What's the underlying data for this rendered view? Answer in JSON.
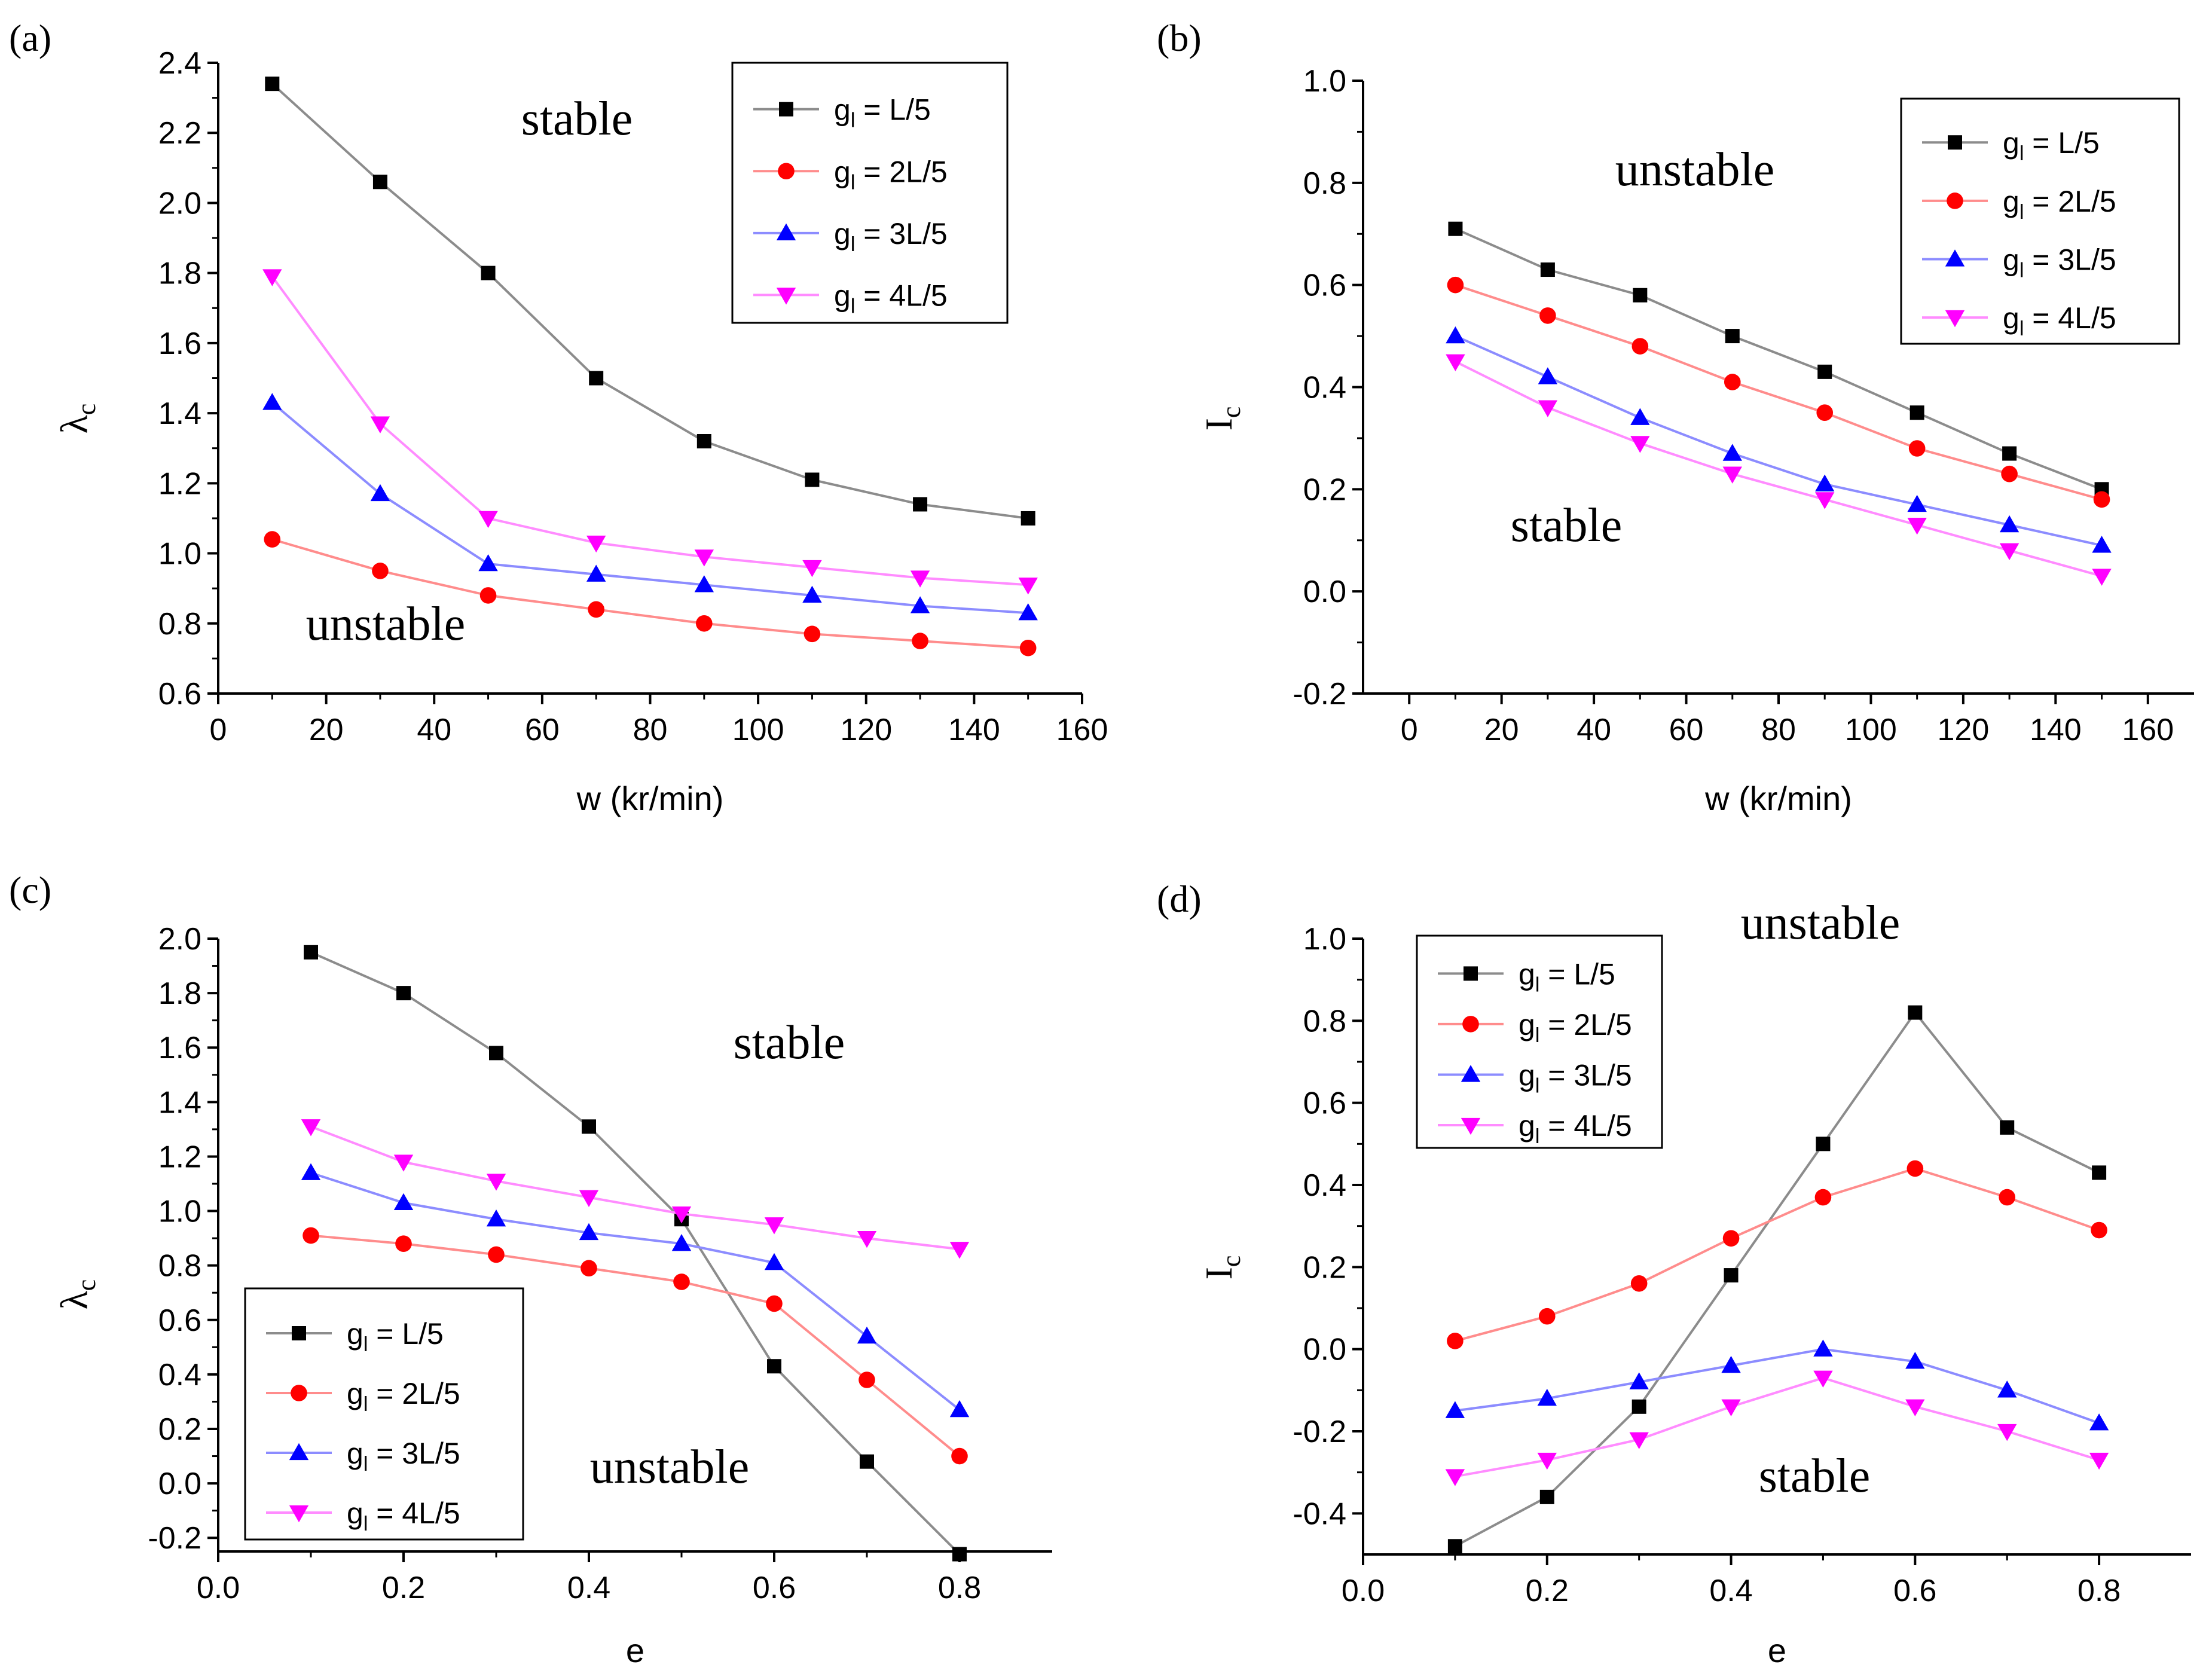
{
  "chart_data": [
    {
      "panel_label": "(a)",
      "type": "line",
      "xlabel": "w (kr/min)",
      "ylabel_main": "λ",
      "ylabel_sub": "c",
      "xlim": [
        0,
        160
      ],
      "ylim": [
        0.6,
        2.4
      ],
      "xticks": [
        0,
        20,
        40,
        60,
        80,
        100,
        120,
        140,
        160
      ],
      "yticks": [
        0.6,
        0.8,
        1.0,
        1.2,
        1.4,
        1.6,
        1.8,
        2.0,
        2.2,
        2.4
      ],
      "x": [
        10,
        30,
        50,
        70,
        90,
        110,
        130,
        150
      ],
      "series": [
        {
          "name": "gl = L/5",
          "label_main": "g",
          "label_sub": "l",
          "label_rest": " = L/5",
          "color": "#000000",
          "line_color": "#8c8c8c",
          "marker": "square",
          "values": [
            2.34,
            2.06,
            1.8,
            1.5,
            1.32,
            1.21,
            1.14,
            1.1
          ]
        },
        {
          "name": "gl = 2L/5",
          "label_main": "g",
          "label_sub": "l",
          "label_rest": " = 2L/5",
          "color": "#ff0000",
          "line_color": "#ff8c8c",
          "marker": "circle",
          "values": [
            1.04,
            0.95,
            0.88,
            0.84,
            0.8,
            0.77,
            0.75,
            0.73
          ]
        },
        {
          "name": "gl = 3L/5",
          "label_main": "g",
          "label_sub": "l",
          "label_rest": " = 3L/5",
          "color": "#0000ff",
          "line_color": "#8c8cff",
          "marker": "triangle-up",
          "values": [
            1.43,
            1.17,
            0.97,
            0.94,
            0.91,
            0.88,
            0.85,
            0.83
          ]
        },
        {
          "name": "gl = 4L/5",
          "label_main": "g",
          "label_sub": "l",
          "label_rest": " = 4L/5",
          "color": "#ff00ff",
          "line_color": "#ff8cff",
          "marker": "triangle-down",
          "values": [
            1.79,
            1.37,
            1.1,
            1.03,
            0.99,
            0.96,
            0.93,
            0.91
          ]
        }
      ],
      "annotations": [
        "stable",
        "unstable"
      ],
      "legend_position": "top-right"
    },
    {
      "panel_label": "(b)",
      "type": "line",
      "xlabel": "w (kr/min)",
      "ylabel_main": "I",
      "ylabel_sub": "c",
      "xlim": [
        -10,
        170
      ],
      "ylim": [
        -0.2,
        1.0
      ],
      "xticks": [
        0,
        20,
        40,
        60,
        80,
        100,
        120,
        140,
        160
      ],
      "yticks": [
        -0.2,
        0.0,
        0.2,
        0.4,
        0.6,
        0.8,
        1.0
      ],
      "x": [
        10,
        30,
        50,
        70,
        90,
        110,
        130,
        150
      ],
      "series": [
        {
          "name": "gl = L/5",
          "label_main": "g",
          "label_sub": "l",
          "label_rest": " = L/5",
          "color": "#000000",
          "line_color": "#8c8c8c",
          "marker": "square",
          "values": [
            0.71,
            0.63,
            0.58,
            0.5,
            0.43,
            0.35,
            0.27,
            0.2
          ]
        },
        {
          "name": "gl = 2L/5",
          "label_main": "g",
          "label_sub": "l",
          "label_rest": " = 2L/5",
          "color": "#ff0000",
          "line_color": "#ff8c8c",
          "marker": "circle",
          "values": [
            0.6,
            0.54,
            0.48,
            0.41,
            0.35,
            0.28,
            0.23,
            0.18
          ]
        },
        {
          "name": "gl = 3L/5",
          "label_main": "g",
          "label_sub": "l",
          "label_rest": " = 3L/5",
          "color": "#0000ff",
          "line_color": "#8c8cff",
          "marker": "triangle-up",
          "values": [
            0.5,
            0.42,
            0.34,
            0.27,
            0.21,
            0.17,
            0.13,
            0.09
          ]
        },
        {
          "name": "gl = 4L/5",
          "label_main": "g",
          "label_sub": "l",
          "label_rest": " = 4L/5",
          "color": "#ff00ff",
          "line_color": "#ff8cff",
          "marker": "triangle-down",
          "values": [
            0.45,
            0.36,
            0.29,
            0.23,
            0.18,
            0.13,
            0.08,
            0.03
          ]
        }
      ],
      "annotations": [
        "unstable",
        "stable"
      ],
      "legend_position": "top-right"
    },
    {
      "panel_label": "(c)",
      "type": "line",
      "xlabel": "e",
      "ylabel_main": "λ",
      "ylabel_sub": "c",
      "xlim": [
        0.0,
        0.9
      ],
      "ylim": [
        -0.25,
        2.0
      ],
      "xticks": [
        0.0,
        0.2,
        0.4,
        0.6,
        0.8
      ],
      "yticks": [
        -0.2,
        0.0,
        0.2,
        0.4,
        0.6,
        0.8,
        1.0,
        1.2,
        1.4,
        1.6,
        1.8,
        2.0
      ],
      "x": [
        0.1,
        0.2,
        0.3,
        0.4,
        0.5,
        0.6,
        0.7,
        0.8
      ],
      "series": [
        {
          "name": "gl = L/5",
          "label_main": "g",
          "label_sub": "l",
          "label_rest": " = L/5",
          "color": "#000000",
          "line_color": "#8c8c8c",
          "marker": "square",
          "values": [
            1.95,
            1.8,
            1.58,
            1.31,
            0.97,
            0.43,
            0.08,
            -0.26
          ]
        },
        {
          "name": "gl = 2L/5",
          "label_main": "g",
          "label_sub": "l",
          "label_rest": " = 2L/5",
          "color": "#ff0000",
          "line_color": "#ff8c8c",
          "marker": "circle",
          "values": [
            0.91,
            0.88,
            0.84,
            0.79,
            0.74,
            0.66,
            0.38,
            0.1
          ]
        },
        {
          "name": "gl = 3L/5",
          "label_main": "g",
          "label_sub": "l",
          "label_rest": " = 3L/5",
          "color": "#0000ff",
          "line_color": "#8c8cff",
          "marker": "triangle-up",
          "values": [
            1.14,
            1.03,
            0.97,
            0.92,
            0.88,
            0.81,
            0.54,
            0.27
          ]
        },
        {
          "name": "gl = 4L/5",
          "label_main": "g",
          "label_sub": "l",
          "label_rest": " = 4L/5",
          "color": "#ff00ff",
          "line_color": "#ff8cff",
          "marker": "triangle-down",
          "values": [
            1.31,
            1.18,
            1.11,
            1.05,
            0.99,
            0.95,
            0.9,
            0.86
          ]
        }
      ],
      "annotations": [
        "stable",
        "unstable"
      ],
      "legend_position": "bottom-left"
    },
    {
      "panel_label": "(d)",
      "type": "line",
      "xlabel": "e",
      "ylabel_main": "I",
      "ylabel_sub": "c",
      "xlim": [
        0.0,
        0.9
      ],
      "ylim": [
        -0.5,
        1.0
      ],
      "xticks": [
        0.0,
        0.2,
        0.4,
        0.6,
        0.8
      ],
      "yticks": [
        -0.4,
        -0.2,
        0.0,
        0.2,
        0.4,
        0.6,
        0.8,
        1.0
      ],
      "x": [
        0.1,
        0.2,
        0.3,
        0.4,
        0.5,
        0.6,
        0.7,
        0.8
      ],
      "series": [
        {
          "name": "gl = L/5",
          "label_main": "g",
          "label_sub": "l",
          "label_rest": " = L/5",
          "color": "#000000",
          "line_color": "#8c8c8c",
          "marker": "square",
          "values": [
            -0.48,
            -0.36,
            -0.14,
            0.18,
            0.5,
            0.82,
            0.54,
            0.43
          ]
        },
        {
          "name": "gl = 2L/5",
          "label_main": "g",
          "label_sub": "l",
          "label_rest": " = 2L/5",
          "color": "#ff0000",
          "line_color": "#ff8c8c",
          "marker": "circle",
          "values": [
            0.02,
            0.08,
            0.16,
            0.27,
            0.37,
            0.44,
            0.37,
            0.29
          ]
        },
        {
          "name": "gl = 3L/5",
          "label_main": "g",
          "label_sub": "l",
          "label_rest": " = 3L/5",
          "color": "#0000ff",
          "line_color": "#8c8cff",
          "marker": "triangle-up",
          "values": [
            -0.15,
            -0.12,
            -0.08,
            -0.04,
            0.0,
            -0.03,
            -0.1,
            -0.18
          ]
        },
        {
          "name": "gl = 4L/5",
          "label_main": "g",
          "label_sub": "l",
          "label_rest": " = 4L/5",
          "color": "#ff00ff",
          "line_color": "#ff8cff",
          "marker": "triangle-down",
          "values": [
            -0.31,
            -0.27,
            -0.22,
            -0.14,
            -0.07,
            -0.14,
            -0.2,
            -0.27
          ]
        }
      ],
      "annotations": [
        "unstable",
        "stable"
      ],
      "legend_position": "top-left"
    }
  ]
}
